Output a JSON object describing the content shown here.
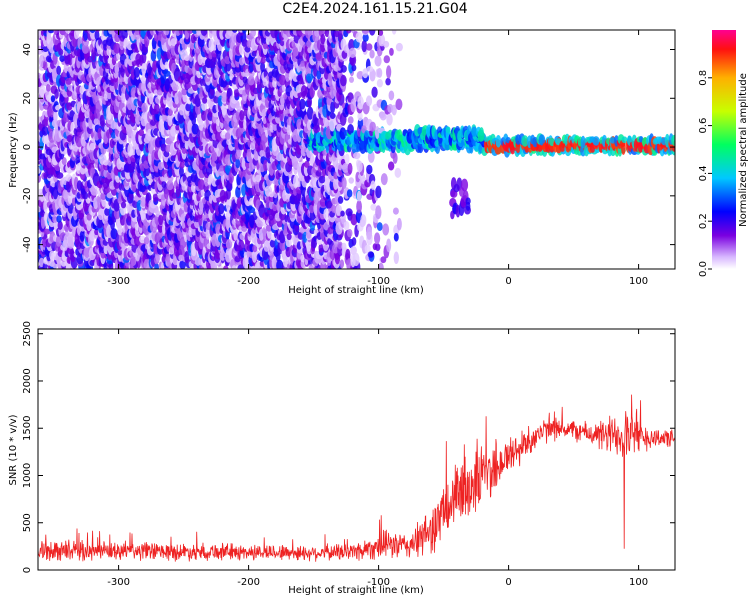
{
  "title": "C2E4.2024.161.15.21.G04",
  "colors": {
    "snr_line": "#ee2222",
    "spectrogram_low": "#6600dd",
    "spectrogram_mid": "#00e0ff",
    "spectrogram_high": "#ff2222"
  },
  "chart_data": [
    {
      "type": "heatmap",
      "title": "",
      "xlabel": "Height of straight line (km)",
      "ylabel": "Frequency (Hz)",
      "xlim": [
        -362,
        128
      ],
      "ylim": [
        -50,
        48
      ],
      "x_ticks": [
        -300,
        -200,
        -100,
        0,
        100
      ],
      "x_tick_labels": [
        "-300",
        "-200",
        "-100",
        "0",
        "100"
      ],
      "y_ticks": [
        -40,
        -20,
        0,
        20,
        40
      ],
      "y_tick_labels": [
        "-40",
        "-20",
        "0",
        "20",
        "40"
      ],
      "grid": false,
      "colorbar": {
        "label": "Normalized spectral amplitude",
        "range": [
          0,
          1
        ],
        "ticks": [
          0,
          0.2,
          0.4,
          0.6,
          0.8
        ],
        "tick_labels": [
          "0.0",
          "0.2",
          "0.4",
          "0.6",
          "0.8"
        ],
        "colormap": "rainbow"
      },
      "regions": [
        {
          "name": "broadband noise",
          "x": [
            -362,
            -85
          ],
          "y": [
            -50,
            48
          ],
          "amplitude": 0.15
        },
        {
          "name": "signal band",
          "x": [
            -155,
            128
          ],
          "y": [
            -3,
            5
          ],
          "amplitude": [
            0.3,
            0.9
          ]
        },
        {
          "name": "peak line",
          "x": [
            -20,
            128
          ],
          "y": [
            0,
            0
          ],
          "amplitude": 0.9
        }
      ]
    },
    {
      "type": "line",
      "title": "",
      "xlabel": "Height of straight line (km)",
      "ylabel": "SNR (10 * v/v)",
      "xlim": [
        -362,
        128
      ],
      "ylim": [
        0,
        2550
      ],
      "x_ticks": [
        -300,
        -200,
        -100,
        0,
        100
      ],
      "x_tick_labels": [
        "-300",
        "-200",
        "-100",
        "0",
        "100"
      ],
      "y_ticks": [
        0,
        500,
        1000,
        1500,
        2000,
        2500
      ],
      "y_tick_labels": [
        "0",
        "500",
        "1000",
        "1500",
        "2000",
        "2500"
      ],
      "grid": false,
      "series": [
        {
          "x": [
            -362,
            -340,
            -320,
            -300,
            -280,
            -260,
            -240,
            -220,
            -200,
            -180,
            -160,
            -140,
            -120,
            -110,
            -100,
            -90,
            -80,
            -70,
            -60,
            -50,
            -40,
            -30,
            -20,
            -10,
            0,
            10,
            20,
            30,
            40,
            50,
            60,
            70,
            80,
            90,
            100,
            110,
            120,
            128
          ],
          "y": [
            200,
            210,
            200,
            195,
            200,
            190,
            195,
            195,
            185,
            190,
            180,
            185,
            195,
            220,
            260,
            270,
            250,
            300,
            420,
            600,
            780,
            900,
            1000,
            1100,
            1200,
            1300,
            1420,
            1480,
            1500,
            1480,
            1450,
            1420,
            1420,
            1500,
            1420,
            1400,
            1400,
            1380
          ],
          "noise_amplitude": [
            120,
            130,
            120,
            110,
            120,
            110,
            110,
            110,
            100,
            100,
            100,
            100,
            120,
            140,
            170,
            180,
            170,
            220,
            300,
            380,
            420,
            450,
            450,
            350,
            260,
            220,
            180,
            150,
            130,
            130,
            140,
            180,
            280,
            400,
            220,
            140,
            120,
            110
          ]
        }
      ]
    }
  ]
}
